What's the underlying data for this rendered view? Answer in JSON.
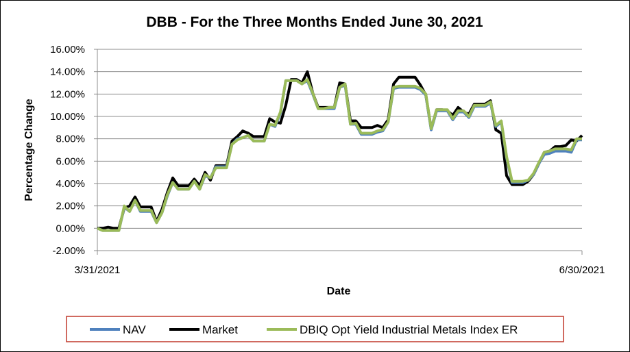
{
  "chart_data": {
    "type": "line",
    "title": "DBB - For the Three Months Ended June 30, 2021",
    "xlabel": "Date",
    "ylabel": "Percentage Change",
    "x_tick_labels": [
      "3/31/2021",
      "6/30/2021"
    ],
    "y_tick_labels": [
      "-2.00%",
      "0.00%",
      "2.00%",
      "4.00%",
      "6.00%",
      "8.00%",
      "10.00%",
      "12.00%",
      "14.00%",
      "16.00%"
    ],
    "ylim": [
      -2,
      16
    ],
    "y_step": 2,
    "grid": true,
    "legend_position": "bottom",
    "series": [
      {
        "name": "NAV",
        "color": "#4f81bd",
        "values": [
          0.0,
          -0.2,
          -0.2,
          -0.2,
          -0.2,
          1.9,
          1.5,
          2.5,
          1.5,
          1.5,
          1.5,
          0.5,
          1.4,
          2.9,
          4.1,
          3.5,
          3.5,
          3.5,
          4.2,
          3.5,
          4.7,
          4.5,
          5.5,
          5.5,
          5.5,
          7.5,
          8.0,
          8.1,
          8.3,
          7.8,
          7.8,
          7.8,
          9.3,
          9.1,
          10.3,
          13.2,
          13.2,
          13.2,
          12.9,
          13.2,
          12.0,
          10.7,
          10.7,
          10.7,
          10.7,
          12.6,
          12.8,
          9.3,
          9.3,
          8.4,
          8.4,
          8.4,
          8.6,
          8.7,
          9.5,
          12.5,
          12.6,
          12.6,
          12.6,
          12.6,
          12.4,
          11.9,
          8.8,
          10.5,
          10.5,
          10.5,
          9.7,
          10.4,
          10.4,
          9.9,
          10.9,
          10.9,
          10.9,
          11.2,
          9.1,
          9.5,
          6.3,
          4.1,
          4.1,
          4.1,
          4.3,
          4.8,
          5.8,
          6.6,
          6.7,
          6.9,
          6.9,
          6.9,
          6.8,
          7.9,
          7.9
        ]
      },
      {
        "name": "Market",
        "color": "#000000",
        "values": [
          0.0,
          0.0,
          0.1,
          0.0,
          0.0,
          1.8,
          2.0,
          2.8,
          1.9,
          1.9,
          1.9,
          0.6,
          1.7,
          3.2,
          4.5,
          3.8,
          3.8,
          3.8,
          4.4,
          3.8,
          5.0,
          4.3,
          5.6,
          5.6,
          5.6,
          7.8,
          8.2,
          8.7,
          8.5,
          8.2,
          8.2,
          8.2,
          9.8,
          9.5,
          9.4,
          11.0,
          13.3,
          13.3,
          13.0,
          14.0,
          12.1,
          10.8,
          10.8,
          10.8,
          10.8,
          13.0,
          12.9,
          9.6,
          9.6,
          9.0,
          9.0,
          9.0,
          9.2,
          9.0,
          9.7,
          12.9,
          13.5,
          13.5,
          13.5,
          13.5,
          12.8,
          11.9,
          8.9,
          10.6,
          10.6,
          10.5,
          10.1,
          10.8,
          10.4,
          10.2,
          11.1,
          11.1,
          11.1,
          11.4,
          8.8,
          8.5,
          4.7,
          3.9,
          3.9,
          3.9,
          4.2,
          4.8,
          5.8,
          6.8,
          6.9,
          7.3,
          7.3,
          7.4,
          7.9,
          7.8,
          8.3
        ]
      },
      {
        "name": "DBIQ Opt Yield Industrial Metals Index ER",
        "color": "#9bbb59",
        "values": [
          0.0,
          -0.2,
          -0.2,
          -0.2,
          -0.2,
          2.0,
          1.5,
          2.5,
          1.6,
          1.6,
          1.6,
          0.5,
          1.4,
          3.0,
          4.1,
          3.5,
          3.5,
          3.5,
          4.2,
          3.5,
          4.8,
          4.5,
          5.4,
          5.4,
          5.4,
          7.5,
          7.9,
          8.1,
          8.3,
          7.8,
          7.8,
          7.8,
          9.3,
          9.2,
          10.4,
          13.2,
          13.2,
          13.2,
          12.9,
          13.3,
          12.1,
          10.7,
          10.7,
          10.8,
          10.8,
          12.6,
          12.9,
          9.3,
          9.4,
          8.5,
          8.5,
          8.5,
          8.7,
          8.8,
          9.5,
          12.6,
          12.7,
          12.7,
          12.7,
          12.7,
          12.5,
          12.0,
          8.9,
          10.6,
          10.6,
          10.6,
          9.8,
          10.5,
          10.5,
          10.0,
          11.0,
          11.0,
          11.0,
          11.3,
          9.2,
          9.6,
          6.4,
          4.2,
          4.2,
          4.2,
          4.3,
          4.9,
          5.9,
          6.8,
          6.9,
          7.1,
          7.1,
          7.1,
          7.0,
          8.0,
          8.0
        ]
      }
    ]
  }
}
